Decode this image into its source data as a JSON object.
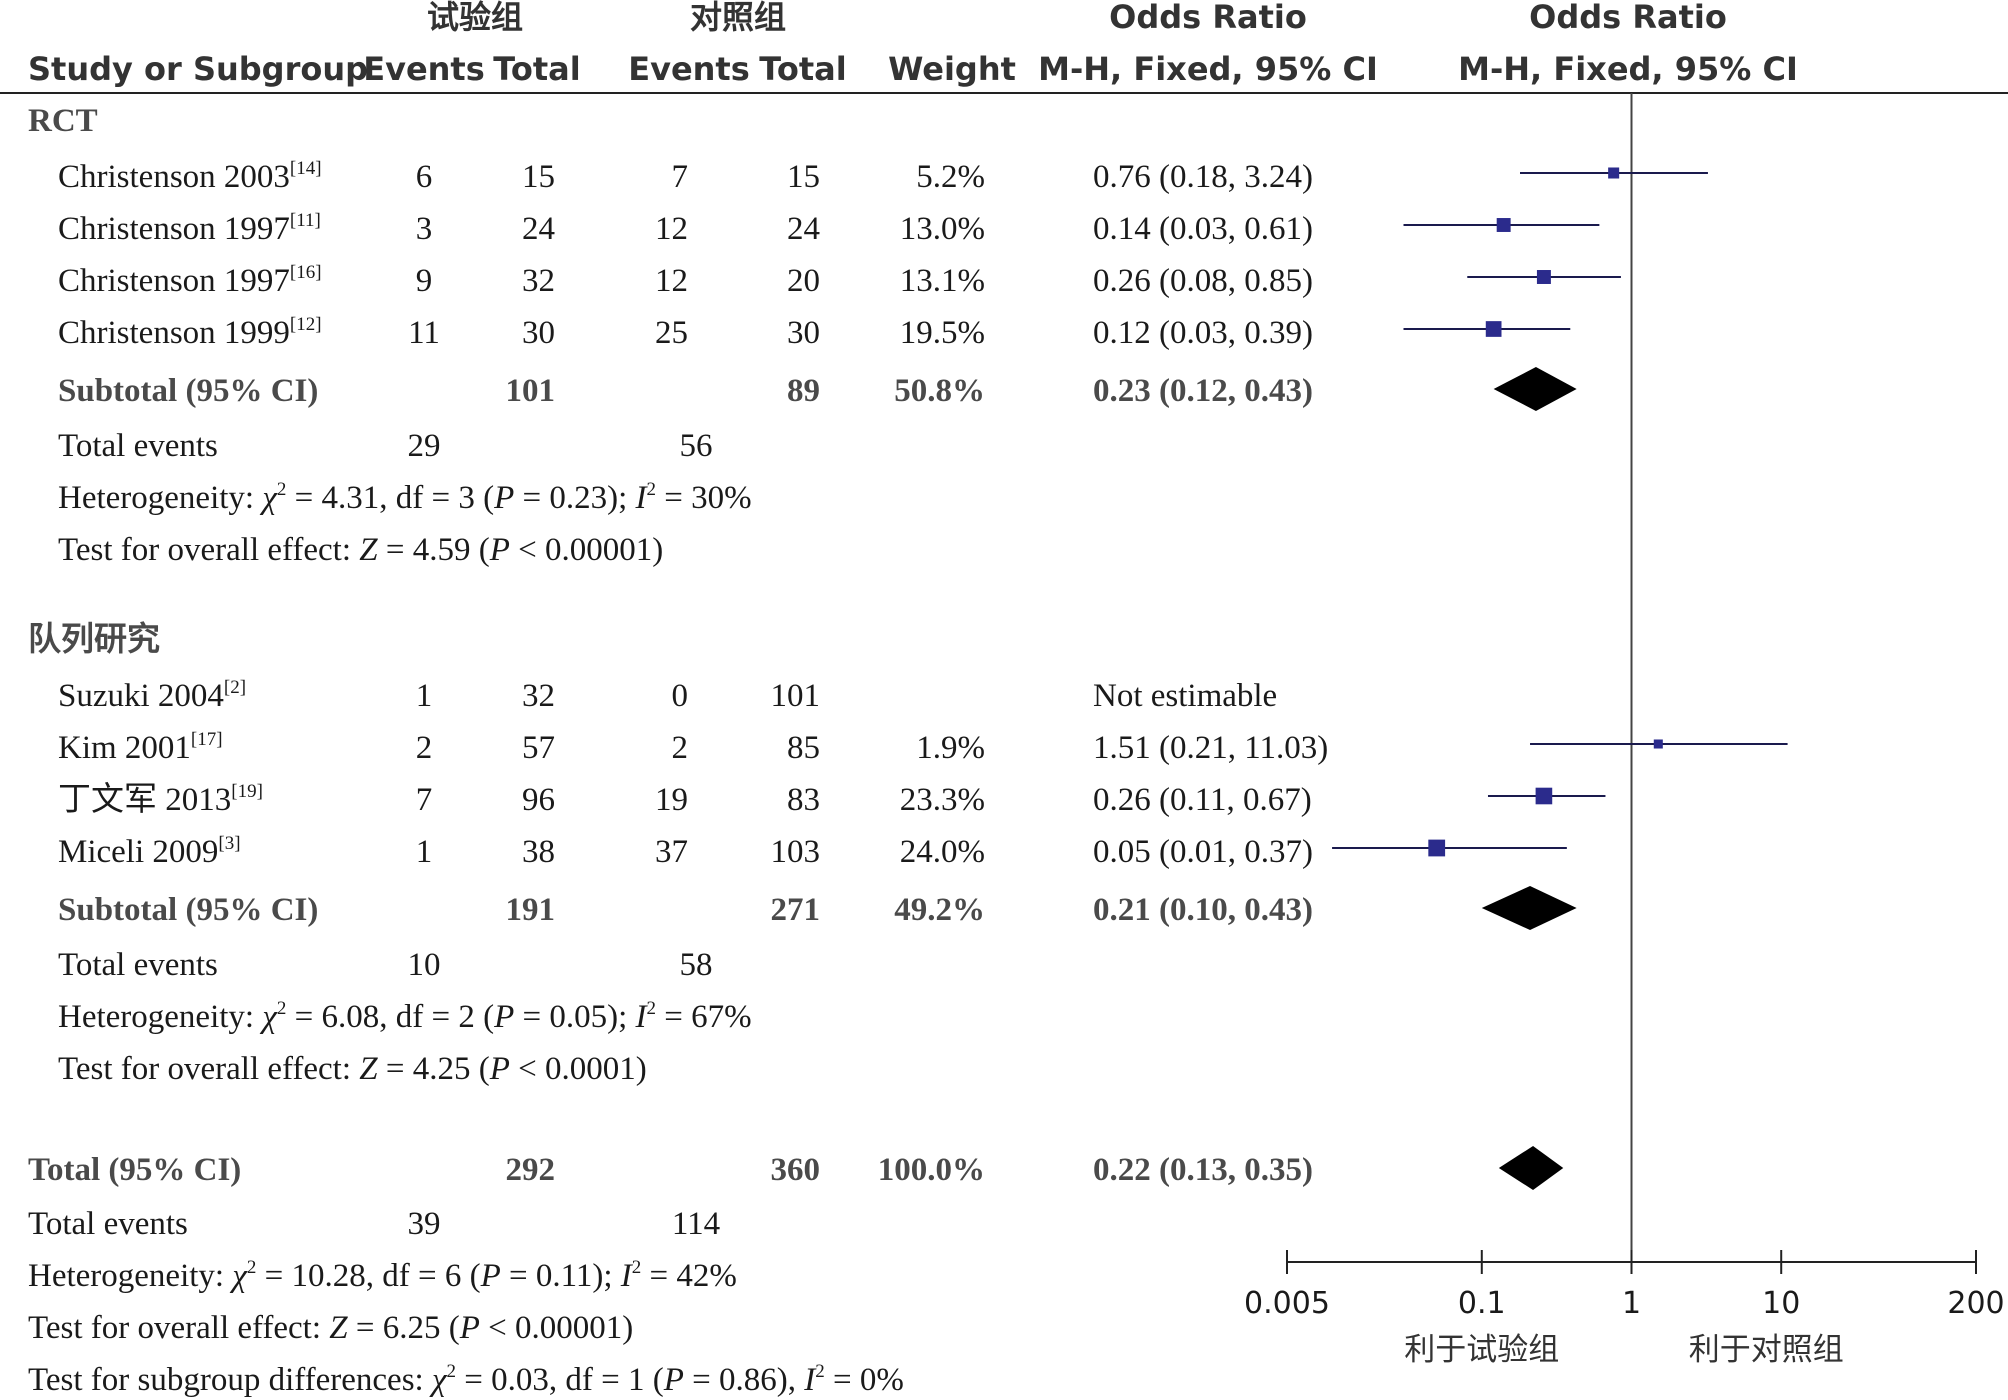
{
  "chart_data": {
    "type": "forest",
    "header": {
      "study_col": "Study or Subgroup",
      "exp_group": "试验组",
      "ctl_group": "对照组",
      "events": "Events",
      "total": "Total",
      "weight": "Weight",
      "or_title": "Odds Ratio",
      "or_method": "M-H, Fixed, 95% CI"
    },
    "axis": {
      "scale": "log",
      "range": [
        0.005,
        200
      ],
      "ticks": [
        0.005,
        0.1,
        1,
        10,
        200
      ],
      "tick_labels": [
        "0.005",
        "0.1",
        "1",
        "10",
        "200"
      ],
      "favours_left": "利于试验组",
      "favours_right": "利于对照组"
    },
    "subgroups": [
      {
        "name": "RCT",
        "studies": [
          {
            "name": "Christenson 2003",
            "ref": "[14]",
            "exp_events": "6",
            "exp_total": "15",
            "ctl_events": "7",
            "ctl_total": "15",
            "weight": "5.2%",
            "ci_text": "0.76 (0.18, 3.24)",
            "or": 0.76,
            "lo": 0.18,
            "hi": 3.24,
            "w": 5.2
          },
          {
            "name": "Christenson 1997",
            "ref": "[11]",
            "exp_events": "3",
            "exp_total": "24",
            "ctl_events": "12",
            "ctl_total": "24",
            "weight": "13.0%",
            "ci_text": "0.14 (0.03, 0.61)",
            "or": 0.14,
            "lo": 0.03,
            "hi": 0.61,
            "w": 13.0
          },
          {
            "name": "Christenson 1997",
            "ref": "[16]",
            "exp_events": "9",
            "exp_total": "32",
            "ctl_events": "12",
            "ctl_total": "20",
            "weight": "13.1%",
            "ci_text": "0.26 (0.08, 0.85)",
            "or": 0.26,
            "lo": 0.08,
            "hi": 0.85,
            "w": 13.1
          },
          {
            "name": "Christenson 1999",
            "ref": "[12]",
            "exp_events": "11",
            "exp_total": "30",
            "ctl_events": "25",
            "ctl_total": "30",
            "weight": "19.5%",
            "ci_text": "0.12 (0.03, 0.39)",
            "or": 0.12,
            "lo": 0.03,
            "hi": 0.39,
            "w": 19.5
          }
        ],
        "subtotal": {
          "label": "Subtotal (95% CI)",
          "exp_total": "101",
          "ctl_total": "89",
          "weight": "50.8%",
          "ci_text": "0.23 (0.12, 0.43)",
          "or": 0.23,
          "lo": 0.12,
          "hi": 0.43
        },
        "total_events": {
          "label": "Total events",
          "exp": "29",
          "ctl": "56"
        },
        "heterogeneity": {
          "prefix": "Heterogeneity: ",
          "chi": "χ",
          "chi_val": " = 4.31, df = 3 (",
          "p": "P",
          "p_val": " = 0.23); ",
          "i": "I",
          "i_val": " = 30%"
        },
        "overall": {
          "prefix": "Test for overall effect: ",
          "z": "Z",
          "z_val": " = 4.59 (",
          "p": "P",
          "p_val": " < 0.00001)"
        }
      },
      {
        "name": "队列研究",
        "studies": [
          {
            "name": "Suzuki 2004",
            "ref": "[2]",
            "exp_events": "1",
            "exp_total": "32",
            "ctl_events": "0",
            "ctl_total": "101",
            "weight": "",
            "ci_text": "Not estimable",
            "or": null,
            "lo": null,
            "hi": null,
            "w": 0
          },
          {
            "name": "Kim 2001",
            "ref": "[17]",
            "exp_events": "2",
            "exp_total": "57",
            "ctl_events": "2",
            "ctl_total": "85",
            "weight": "1.9%",
            "ci_text": "1.51 (0.21, 11.03)",
            "or": 1.51,
            "lo": 0.21,
            "hi": 11.03,
            "w": 1.9
          },
          {
            "name": "丁文军 2013",
            "ref": "[19]",
            "exp_events": "7",
            "exp_total": "96",
            "ctl_events": "19",
            "ctl_total": "83",
            "weight": "23.3%",
            "ci_text": "0.26 (0.11, 0.67)",
            "or": 0.26,
            "lo": 0.11,
            "hi": 0.67,
            "w": 23.3
          },
          {
            "name": "Miceli 2009",
            "ref": "[3]",
            "exp_events": "1",
            "exp_total": "38",
            "ctl_events": "37",
            "ctl_total": "103",
            "weight": "24.0%",
            "ci_text": "0.05 (0.01, 0.37)",
            "or": 0.05,
            "lo": 0.01,
            "hi": 0.37,
            "w": 24.0
          }
        ],
        "subtotal": {
          "label": "Subtotal (95% CI)",
          "exp_total": "191",
          "ctl_total": "271",
          "weight": "49.2%",
          "ci_text": "0.21 (0.10, 0.43)",
          "or": 0.21,
          "lo": 0.1,
          "hi": 0.43
        },
        "total_events": {
          "label": "Total events",
          "exp": "10",
          "ctl": "58"
        },
        "heterogeneity": {
          "prefix": "Heterogeneity: ",
          "chi": "χ",
          "chi_val": " = 6.08, df = 2 (",
          "p": "P",
          "p_val": " = 0.05); ",
          "i": "I",
          "i_val": " = 67%"
        },
        "overall": {
          "prefix": "Test for overall effect: ",
          "z": "Z",
          "z_val": " = 4.25 (",
          "p": "P",
          "p_val": " < 0.0001)"
        }
      }
    ],
    "total": {
      "label": "Total (95% CI)",
      "exp_total": "292",
      "ctl_total": "360",
      "weight": "100.0%",
      "ci_text": "0.22 (0.13, 0.35)",
      "or": 0.22,
      "lo": 0.13,
      "hi": 0.35
    },
    "total_events": {
      "label": "Total events",
      "exp": "39",
      "ctl": "114"
    },
    "heterogeneity": {
      "prefix": "Heterogeneity: ",
      "chi": "χ",
      "chi_val": " = 10.28, df = 6 (",
      "p": "P",
      "p_val": " = 0.11); ",
      "i": "I",
      "i_val": " = 42%"
    },
    "overall": {
      "prefix": "Test for overall effect: ",
      "z": "Z",
      "z_val": " = 6.25 (",
      "p": "P",
      "p_val": " < 0.00001)"
    },
    "subgroup_diff": {
      "prefix": "Test for subgroup differences: ",
      "chi": "χ",
      "chi_val": " = 0.03, df = 1 (",
      "p": "P",
      "p_val": " = 0.86), ",
      "i": "I",
      "i_val": " = 0%"
    },
    "colors": {
      "square": "#2b2b8c",
      "diamond": "#000000",
      "line": "#1a1a4d"
    }
  }
}
